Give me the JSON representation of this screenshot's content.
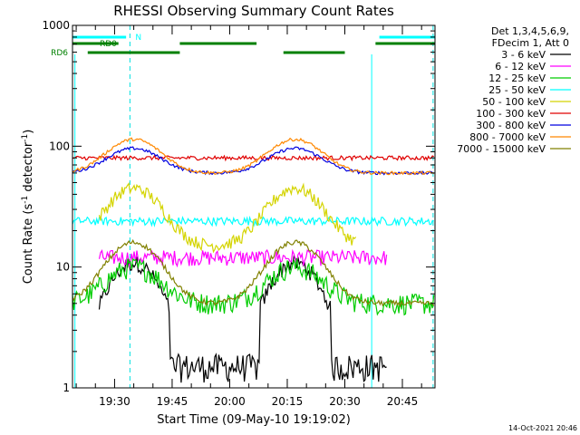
{
  "chart_data": {
    "type": "line",
    "title": "RHESSI Observing Summary Count Rates",
    "xlabel": "Start Time (09-May-10 19:19:02)",
    "ylabel_parts": {
      "main": "Count Rate (s",
      "sup1": "-1",
      "mid": " detector",
      "sup2": "-1",
      "end": ")"
    },
    "x_range": [
      "19:19:02",
      "20:53:30"
    ],
    "x_ticks": [
      "19:30",
      "19:45",
      "20:00",
      "20:15",
      "20:30",
      "20:45"
    ],
    "y_scale": "log",
    "y_range": [
      1,
      1000
    ],
    "y_ticks": [
      "1",
      "10",
      "100",
      "1000"
    ],
    "timestamp": "14-Oct-2021 20:46",
    "legend_header": [
      "Det 1,3,4,5,6,9,",
      "FDecim 1, Att 0"
    ],
    "series": [
      {
        "name": "3 - 6 keV",
        "color": "#000000"
      },
      {
        "name": "6 - 12 keV",
        "color": "#ff00ff"
      },
      {
        "name": "12 - 25 keV",
        "color": "#00cc00"
      },
      {
        "name": "25 - 50 keV",
        "color": "#00ffff"
      },
      {
        "name": "50 - 100 keV",
        "color": "#d4d400"
      },
      {
        "name": "100 - 300 keV",
        "color": "#e00000"
      },
      {
        "name": "300 - 800 keV",
        "color": "#0000e0"
      },
      {
        "name": "800 - 7000 keV",
        "color": "#ff8800"
      },
      {
        "name": "7000 - 15000 keV",
        "color": "#808000"
      }
    ],
    "flag_bars": [
      {
        "label": "N",
        "color": "#00ffff",
        "segments": [
          [
            "19:19:02",
            "19:33:00"
          ],
          [
            "20:39:00",
            "20:53:30"
          ]
        ]
      },
      {
        "label": "RD0",
        "color": "#008000",
        "segments": [
          [
            "19:19:02",
            "19:31:00"
          ],
          [
            "19:47:00",
            "20:07:00"
          ],
          [
            "20:38:00",
            "20:53:30"
          ]
        ]
      },
      {
        "label": "RD6",
        "color": "#008000",
        "segments": [
          [
            "19:23:00",
            "19:47:00"
          ],
          [
            "20:14:00",
            "20:30:00"
          ]
        ]
      }
    ],
    "vertical_markers": [
      "19:34:00",
      "20:53:00"
    ],
    "saa_lines": [
      "19:19:40",
      "20:37:00"
    ]
  }
}
